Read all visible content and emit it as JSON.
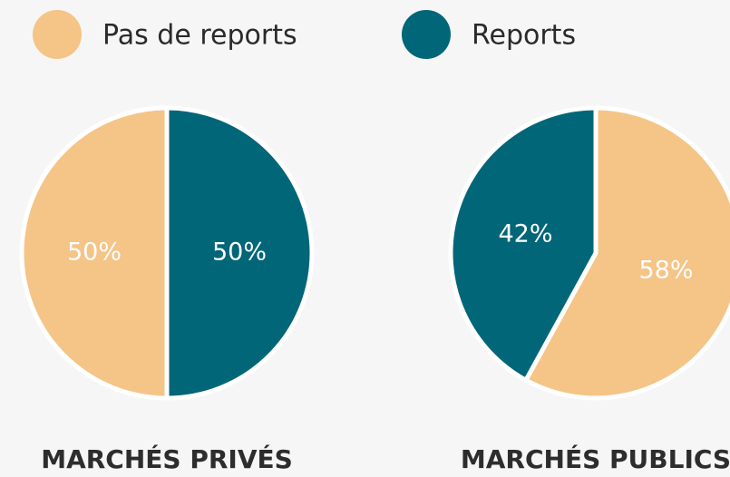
{
  "chart_data": [
    {
      "type": "pie",
      "title": "MARCHÉS PRIVÉS",
      "categories": [
        "Reports",
        "Pas de reports"
      ],
      "values": [
        50,
        50
      ],
      "value_labels": [
        "50%",
        "50%"
      ],
      "colors": [
        "#006678",
        "#f5c487"
      ]
    },
    {
      "type": "pie",
      "title": "MARCHÉS PUBLICS",
      "categories": [
        "Pas de reports",
        "Reports"
      ],
      "values": [
        58,
        42
      ],
      "value_labels": [
        "58%",
        "42%"
      ],
      "colors": [
        "#f5c487",
        "#006678"
      ]
    }
  ]
}
